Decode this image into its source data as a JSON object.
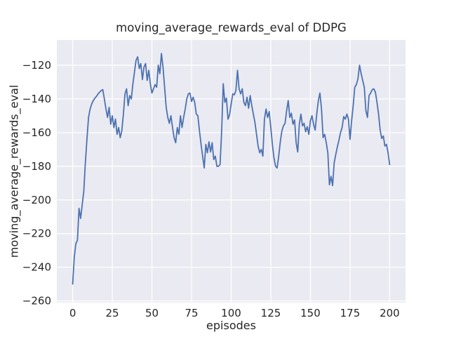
{
  "chart_data": {
    "type": "line",
    "title": "moving_average_rewards_eval of DDPG",
    "xlabel": "episodes",
    "ylabel": "moving_average_rewards_eval",
    "xlim": [
      -10,
      210
    ],
    "ylim": [
      -261,
      -105
    ],
    "x_ticks": [
      0,
      25,
      50,
      75,
      100,
      125,
      150,
      175,
      200
    ],
    "y_ticks": [
      -120,
      -140,
      -160,
      -180,
      -200,
      -220,
      -240,
      -260
    ],
    "grid": true,
    "legend": false,
    "style": {
      "plot_background": "#eaeaf2",
      "grid_color": "#ffffff",
      "line_color": "#4c72b0",
      "text_color": "#262626",
      "figure_background": "#ffffff"
    },
    "series": [
      {
        "name": "moving_average_rewards_eval",
        "x_start": 0,
        "x_step": 1,
        "values": [
          -250,
          -234,
          -226,
          -224,
          -205,
          -211,
          -203,
          -195,
          -178,
          -164,
          -151,
          -146,
          -143,
          -141,
          -139.5,
          -138.5,
          -137,
          -136,
          -135,
          -134.5,
          -140,
          -146,
          -151,
          -145,
          -155,
          -150,
          -157,
          -152,
          -161,
          -157,
          -163,
          -159,
          -149,
          -137,
          -134,
          -144,
          -138,
          -140,
          -131,
          -124,
          -117,
          -115,
          -122,
          -119,
          -128.5,
          -121,
          -119,
          -129,
          -123,
          -131,
          -136.5,
          -134,
          -131.5,
          -133,
          -120,
          -125,
          -113,
          -121,
          -133,
          -145,
          -151,
          -154.5,
          -150,
          -157,
          -163,
          -166,
          -157,
          -161,
          -150,
          -157,
          -151,
          -146,
          -140,
          -137,
          -136.5,
          -141.5,
          -139,
          -142,
          -149,
          -150,
          -159,
          -167,
          -174,
          -181,
          -167,
          -172,
          -165.5,
          -171.5,
          -166,
          -176,
          -174,
          -180,
          -180,
          -179,
          -159,
          -131,
          -142,
          -139.5,
          -152,
          -149.5,
          -143,
          -137,
          -137.5,
          -135,
          -123,
          -134,
          -137,
          -134,
          -142,
          -144,
          -139,
          -145.5,
          -138,
          -144,
          -149,
          -154,
          -161,
          -168,
          -172,
          -170,
          -174,
          -152,
          -146,
          -151,
          -147.5,
          -157,
          -167,
          -175,
          -180,
          -181,
          -174,
          -165.5,
          -159,
          -156,
          -154.5,
          -147,
          -141,
          -151,
          -148.5,
          -155,
          -152.5,
          -166,
          -171.5,
          -155,
          -149,
          -156,
          -154.5,
          -159.5,
          -156.5,
          -161,
          -153,
          -150,
          -155,
          -158.5,
          -149,
          -141,
          -136.5,
          -146,
          -163,
          -161,
          -166,
          -172,
          -191,
          -186,
          -191.5,
          -178,
          -173,
          -168.5,
          -164.5,
          -160,
          -157,
          -150.5,
          -152,
          -149,
          -152,
          -164,
          -153,
          -144,
          -133,
          -131.5,
          -128,
          -120,
          -125,
          -129,
          -133,
          -147,
          -151,
          -138,
          -136.5,
          -134.5,
          -134,
          -136,
          -142,
          -149,
          -158.5,
          -163.5,
          -162,
          -168,
          -167,
          -172,
          -179
        ]
      }
    ]
  }
}
